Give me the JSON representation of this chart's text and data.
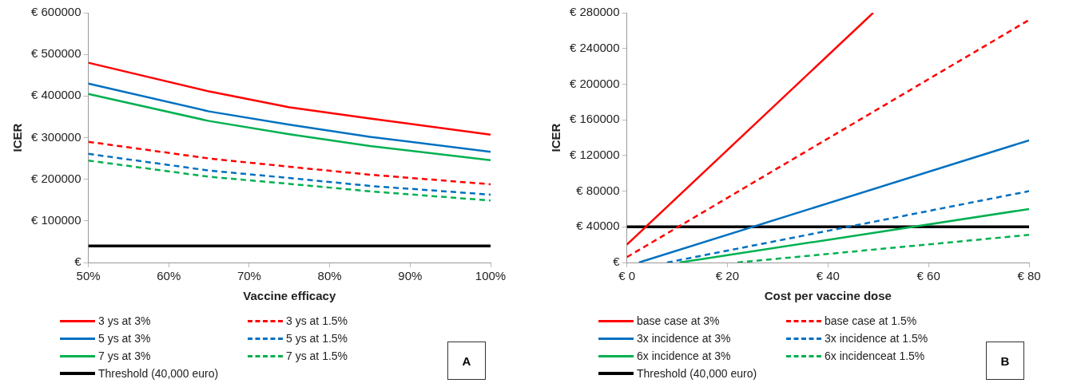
{
  "chart_data": [
    {
      "type": "line",
      "xlabel": "Vaccine efficacy",
      "ylabel": "ICER",
      "legend": "bottom",
      "grid": false,
      "marker": "none",
      "xlim": [
        50,
        100
      ],
      "xticks": [
        {
          "value": 50,
          "label": "50%"
        },
        {
          "value": 60,
          "label": "60%"
        },
        {
          "value": 70,
          "label": "70%"
        },
        {
          "value": 80,
          "label": "80%"
        },
        {
          "value": 90,
          "label": "90%"
        },
        {
          "value": 100,
          "label": "100%"
        }
      ],
      "ylim": [
        0,
        600000
      ],
      "yticks": [
        {
          "value": 0,
          "label": "€"
        },
        {
          "value": 100000,
          "label": "€ 100000"
        },
        {
          "value": 200000,
          "label": "€ 200000"
        },
        {
          "value": 300000,
          "label": "€ 300000"
        },
        {
          "value": 400000,
          "label": "€ 400000"
        },
        {
          "value": 500000,
          "label": "€ 500000"
        },
        {
          "value": 600000,
          "label": "€ 600000"
        }
      ],
      "annotations": [
        "A"
      ],
      "series": [
        {
          "name": "3 ys at 3%",
          "color": "#ff0000",
          "line_style": "solid",
          "x": [
            50,
            65,
            75,
            85,
            100
          ],
          "values": [
            480000,
            411000,
            373000,
            346000,
            307000
          ]
        },
        {
          "name": "3 ys at 1.5%",
          "color": "#ff0000",
          "line_style": "dashed",
          "x": [
            50,
            65,
            75,
            85,
            100
          ],
          "values": [
            290000,
            250000,
            230000,
            211000,
            188000
          ]
        },
        {
          "name": "5 ys at 3%",
          "color": "#0070c0",
          "line_style": "solid",
          "x": [
            50,
            65,
            75,
            85,
            100
          ],
          "values": [
            430000,
            363000,
            331000,
            302000,
            266000
          ]
        },
        {
          "name": "5 ys at 1.5%",
          "color": "#0070c0",
          "line_style": "dashed",
          "x": [
            50,
            65,
            75,
            85,
            100
          ],
          "values": [
            261000,
            221000,
            203000,
            184000,
            163000
          ]
        },
        {
          "name": "7 ys at 3%",
          "color": "#00b050",
          "line_style": "solid",
          "x": [
            50,
            65,
            75,
            85,
            100
          ],
          "values": [
            405000,
            340000,
            308000,
            280000,
            246000
          ]
        },
        {
          "name": "7 ys at 1.5%",
          "color": "#00b050",
          "line_style": "dashed",
          "x": [
            50,
            65,
            75,
            85,
            100
          ],
          "values": [
            245000,
            206000,
            189000,
            171000,
            149000
          ]
        },
        {
          "name": "Threshold (40,000 euro)",
          "color": "#000000",
          "line_style": "solid",
          "x": [
            50,
            100
          ],
          "values": [
            40000,
            40000
          ]
        }
      ]
    },
    {
      "type": "line",
      "xlabel": "Cost per vaccine dose",
      "ylabel": "ICER",
      "legend": "bottom",
      "grid": false,
      "marker": "none",
      "xlim": [
        0,
        80
      ],
      "xticks": [
        {
          "value": 0,
          "label": "€ 0"
        },
        {
          "value": 20,
          "label": "€ 20"
        },
        {
          "value": 40,
          "label": "€ 40"
        },
        {
          "value": 60,
          "label": "€ 60"
        },
        {
          "value": 80,
          "label": "€ 80"
        }
      ],
      "ylim": [
        0,
        280000
      ],
      "yticks": [
        {
          "value": 0,
          "label": "€"
        },
        {
          "value": 40000,
          "label": "€ 40000"
        },
        {
          "value": 80000,
          "label": "€ 80000"
        },
        {
          "value": 120000,
          "label": "€ 120000"
        },
        {
          "value": 160000,
          "label": "€ 160000"
        },
        {
          "value": 200000,
          "label": "€ 200000"
        },
        {
          "value": 240000,
          "label": "€ 240000"
        },
        {
          "value": 280000,
          "label": "€ 280000"
        }
      ],
      "annotations": [
        "B"
      ],
      "series": [
        {
          "name": "base case at 3%",
          "color": "#ff0000",
          "line_style": "solid",
          "x": [
            0,
            49
          ],
          "values": [
            20000,
            280000
          ]
        },
        {
          "name": "base case at 1.5%",
          "color": "#ff0000",
          "line_style": "dashed",
          "x": [
            0,
            80
          ],
          "values": [
            6000,
            272000
          ]
        },
        {
          "name": "3x incidence at 3%",
          "color": "#0070c0",
          "line_style": "solid",
          "x": [
            2.4,
            80
          ],
          "values": [
            0,
            137000
          ]
        },
        {
          "name": "3x incidence at 1.5%",
          "color": "#0070c0",
          "line_style": "dashed",
          "x": [
            8,
            80
          ],
          "values": [
            0,
            80000
          ]
        },
        {
          "name": "6x incidence at 3%",
          "color": "#00b050",
          "line_style": "solid",
          "x": [
            10.5,
            80
          ],
          "values": [
            0,
            60000
          ]
        },
        {
          "name": "6x incidenceat 1.5%",
          "color": "#00b050",
          "line_style": "dashed",
          "x": [
            22,
            80
          ],
          "values": [
            0,
            31000
          ]
        },
        {
          "name": "Threshold (40,000 euro)",
          "color": "#000000",
          "line_style": "solid",
          "x": [
            0,
            80
          ],
          "values": [
            40000,
            40000
          ]
        }
      ]
    }
  ]
}
